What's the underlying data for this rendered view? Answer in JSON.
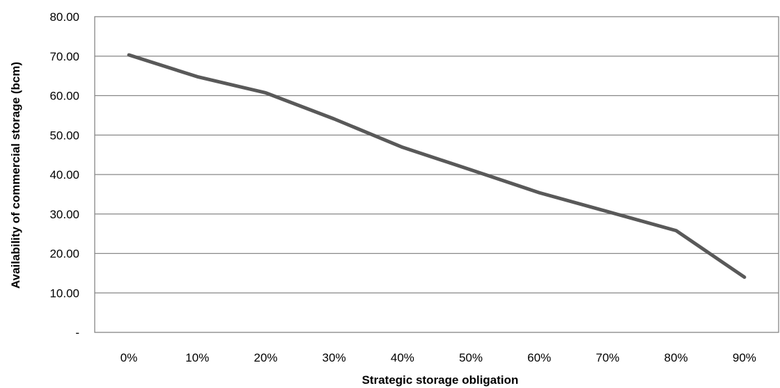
{
  "chart_data": {
    "type": "line",
    "title": "",
    "xlabel": "Strategic storage obligation",
    "ylabel": "Availability of commercial storage (bcm)",
    "categories": [
      "0%",
      "10%",
      "20%",
      "30%",
      "40%",
      "50%",
      "60%",
      "70%",
      "80%",
      "90%"
    ],
    "series": [
      {
        "values": [
          70.3,
          64.8,
          60.7,
          54.1,
          46.9,
          41.2,
          35.4,
          30.6,
          25.8,
          14.0
        ],
        "color": "#595959"
      }
    ],
    "ylim": [
      0,
      80
    ],
    "yticks": [
      0,
      10,
      20,
      30,
      40,
      50,
      60,
      70,
      80
    ],
    "ytick_labels": [
      "-",
      "10.00",
      "20.00",
      "30.00",
      "40.00",
      "50.00",
      "60.00",
      "70.00",
      "80.00"
    ],
    "grid": true,
    "legend": "none"
  }
}
